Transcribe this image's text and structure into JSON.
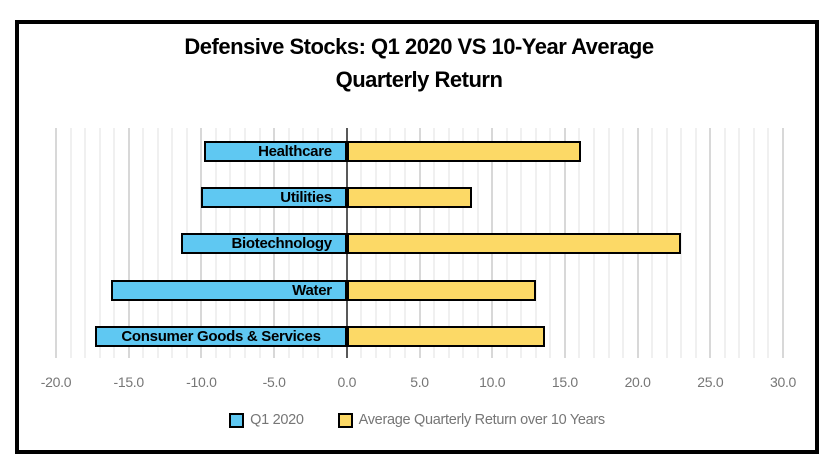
{
  "chart_data": {
    "type": "bar",
    "orientation": "horizontal",
    "title": "Defensive Stocks: Q1 2020 VS 10-Year Average Quarterly Return",
    "title_lines": [
      "Defensive Stocks: Q1 2020 VS 10-Year Average",
      "Quarterly Return"
    ],
    "categories": [
      "Healthcare",
      "Utilities",
      "Biotechnology",
      "Water",
      "Consumer Goods & Services"
    ],
    "series": [
      {
        "name": "Q1 2020",
        "color": "#5FC8F2",
        "values": [
          -9.8,
          -10.0,
          -11.4,
          -16.2,
          -17.3
        ]
      },
      {
        "name": "Average Quarterly Return over 10 Years",
        "color": "#FCD966",
        "values": [
          16.1,
          8.6,
          23.0,
          13.0,
          13.6
        ]
      }
    ],
    "x_axis": {
      "min": -20.0,
      "max": 30.0,
      "major_unit": 5.0,
      "minor_unit": 1.0,
      "tick_labels": [
        "-20.0",
        "-15.0",
        "-10.0",
        "-5.0",
        "0.0",
        "5.0",
        "10.0",
        "15.0",
        "20.0",
        "25.0",
        "30.0"
      ]
    },
    "grid": "vertical minor and major gridlines, zero axis line",
    "legend_position": "bottom",
    "colors": {
      "q1_2020": "#5FC8F2",
      "avg_10yr": "#FCD966",
      "bar_border": "#000000",
      "minor_grid": "#F0F0F0",
      "major_grid": "#D8D8D8",
      "zero_axis": "#595959",
      "axis_text": "#767676",
      "frame_border": "#000000"
    }
  }
}
